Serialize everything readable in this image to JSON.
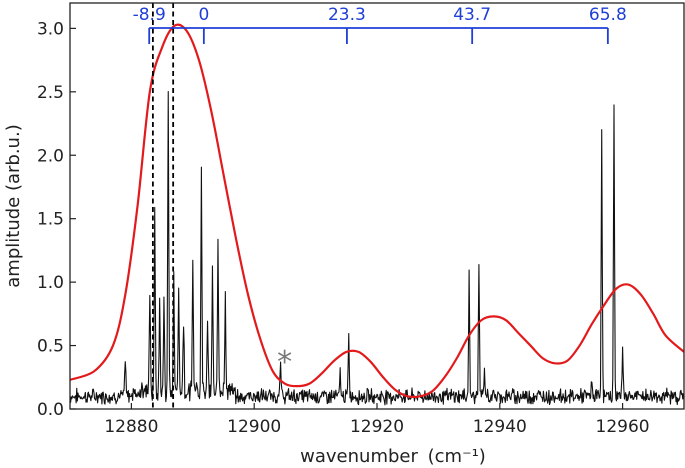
{
  "colors": {
    "spectrum": "#111111",
    "envelope": "#e31a1c",
    "progression": "#1f3fd6",
    "marker": "#777777",
    "axis": "#222222"
  },
  "chart_data": {
    "type": "line",
    "xlabel": "wavenumber",
    "xlabel_unit": "(cm⁻¹)",
    "ylabel": "amplitude (arb.u.)",
    "xlim": [
      12870,
      12970
    ],
    "ylim": [
      0.0,
      3.2
    ],
    "xticks": [
      12880,
      12900,
      12920,
      12940,
      12960
    ],
    "xtick_labels": [
      "12880",
      "12900",
      "12920",
      "12940",
      "12960"
    ],
    "yticks": [
      0.0,
      0.5,
      1.0,
      1.5,
      2.0,
      2.5,
      3.0
    ],
    "ytick_labels": [
      "0.0",
      "0.5",
      "1.0",
      "1.5",
      "2.0",
      "2.5",
      "3.0"
    ],
    "grid": false,
    "series": [
      {
        "style": "stick spectrum",
        "baseline": 0.1,
        "peaks": [
          [
            12879.0,
            0.4
          ],
          [
            12883.0,
            0.92
          ],
          [
            12883.8,
            1.58
          ],
          [
            12884.6,
            0.75
          ],
          [
            12885.3,
            0.9
          ],
          [
            12886.0,
            2.43
          ],
          [
            12886.9,
            1.05
          ],
          [
            12887.7,
            0.88
          ],
          [
            12888.5,
            0.7
          ],
          [
            12890.0,
            1.17
          ],
          [
            12891.4,
            1.9
          ],
          [
            12892.4,
            0.6
          ],
          [
            12893.2,
            1.08
          ],
          [
            12894.1,
            1.35
          ],
          [
            12895.3,
            0.8
          ],
          [
            12904.3,
            0.35
          ],
          [
            12914.0,
            0.28
          ],
          [
            12915.4,
            0.55
          ],
          [
            12935.0,
            1.06
          ],
          [
            12936.6,
            1.15
          ],
          [
            12937.5,
            0.3
          ],
          [
            12955.0,
            0.22
          ],
          [
            12956.6,
            2.23
          ],
          [
            12958.6,
            2.36
          ],
          [
            12960.0,
            0.52
          ]
        ]
      },
      {
        "style": "envelope",
        "x": [
          12870,
          12874,
          12877,
          12879,
          12881,
          12883,
          12885,
          12887,
          12889,
          12891,
          12893,
          12895,
          12897,
          12899,
          12901,
          12903,
          12905,
          12907,
          12909,
          12911,
          12913,
          12915,
          12917,
          12919,
          12921,
          12923,
          12925,
          12927,
          12929,
          12931,
          12933,
          12935,
          12937,
          12939,
          12941,
          12943,
          12945,
          12947,
          12949,
          12951,
          12953,
          12955,
          12957,
          12959,
          12961,
          12963,
          12965,
          12967,
          12970
        ],
        "y": [
          0.23,
          0.3,
          0.5,
          0.9,
          1.6,
          2.5,
          2.85,
          3.02,
          2.98,
          2.75,
          2.35,
          1.85,
          1.35,
          0.9,
          0.55,
          0.3,
          0.2,
          0.18,
          0.2,
          0.28,
          0.38,
          0.45,
          0.45,
          0.37,
          0.25,
          0.15,
          0.1,
          0.1,
          0.14,
          0.25,
          0.4,
          0.58,
          0.7,
          0.73,
          0.7,
          0.6,
          0.5,
          0.4,
          0.36,
          0.38,
          0.5,
          0.67,
          0.82,
          0.95,
          0.98,
          0.9,
          0.75,
          0.58,
          0.45
        ]
      }
    ],
    "vlines": [
      12883.5,
      12886.8
    ],
    "progression": {
      "origin": 12891.8,
      "labels": [
        "-8.9",
        "0",
        "23.3",
        "43.7",
        "65.8"
      ],
      "positions": [
        12882.9,
        12891.8,
        12915.1,
        12935.5,
        12957.6
      ]
    },
    "markers": [
      {
        "label": "*",
        "x": 12904.3,
        "y": 0.45
      }
    ]
  }
}
